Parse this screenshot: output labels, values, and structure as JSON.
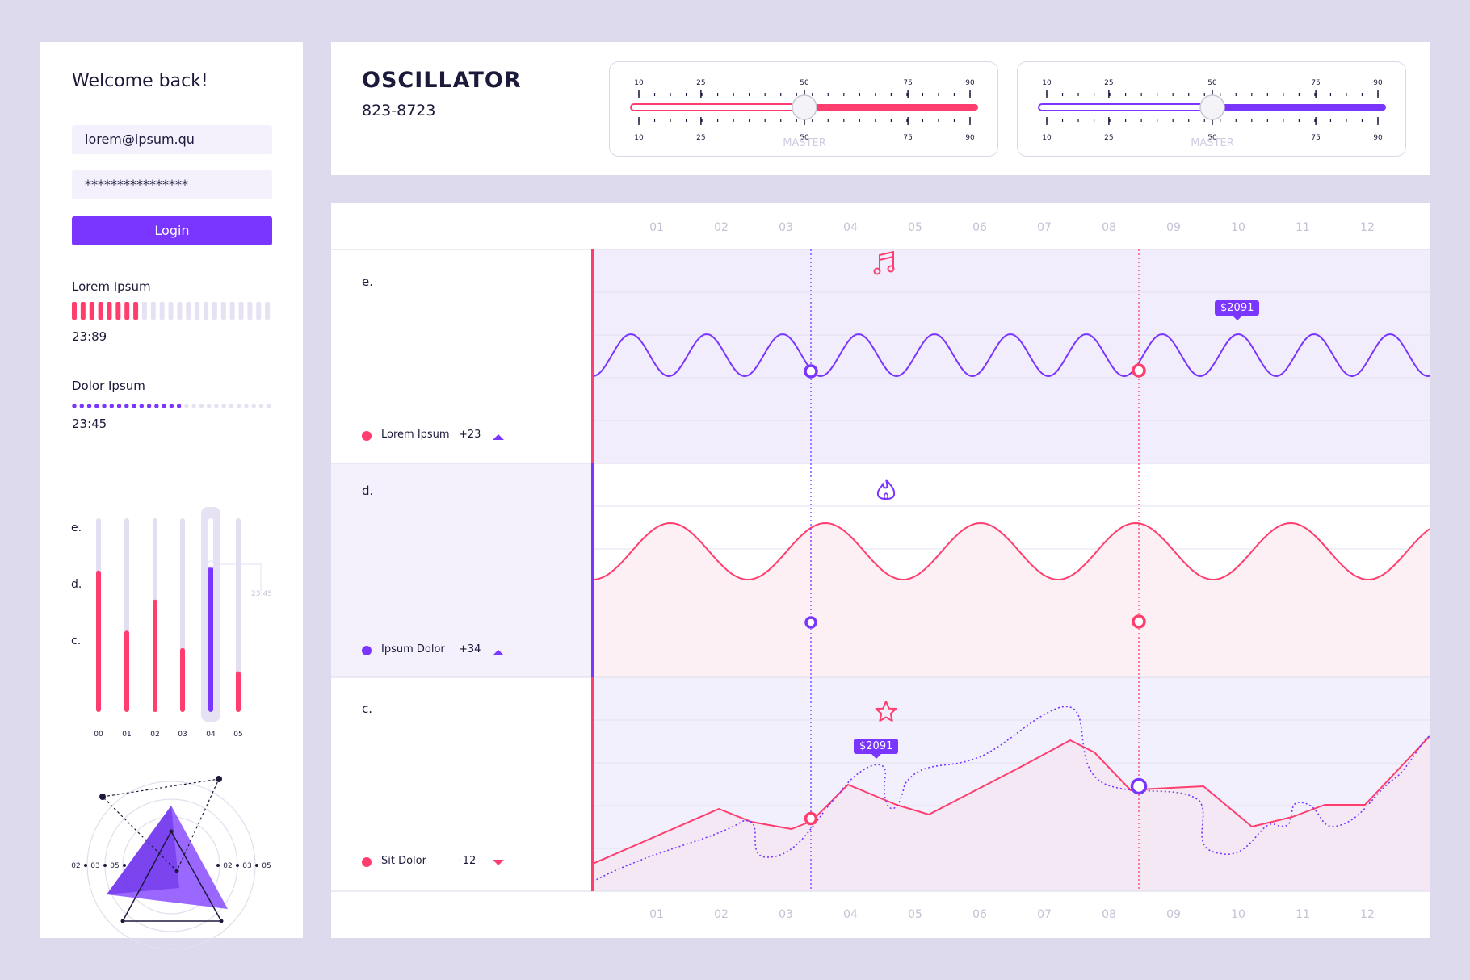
{
  "login": {
    "welcome": "Welcome back!",
    "email_value": "lorem@ipsum.qu",
    "password_value": "****************",
    "login_label": "Login"
  },
  "progress": [
    {
      "label": "Lorem Ipsum",
      "time": "23:89",
      "filled": 8,
      "total": 23
    },
    {
      "label": "Dolor Ipsum",
      "time": "23:45",
      "filled": 15,
      "total": 27
    }
  ],
  "bars": {
    "row_labels": [
      "e.",
      "d.",
      "c."
    ],
    "x_labels": [
      "00",
      "01",
      "02",
      "03",
      "04",
      "05"
    ],
    "values": [
      0.73,
      0.42,
      0.58,
      0.33,
      0.75,
      0.21
    ],
    "selected_index": 4,
    "tooltip": "23:45"
  },
  "radar": {
    "left_ticks": [
      "02",
      "03",
      "05"
    ],
    "right_ticks": [
      "02",
      "03",
      "05"
    ]
  },
  "header": {
    "title": "OSCILLATOR",
    "phone": "823-8723"
  },
  "sliders": [
    {
      "ticks": [
        "10",
        "25",
        "50",
        "75",
        "90"
      ],
      "value": 50,
      "label": "MASTER",
      "color": "#ff3d6e"
    },
    {
      "ticks": [
        "10",
        "25",
        "50",
        "75",
        "90"
      ],
      "value": 50,
      "label": "MASTER",
      "color": "#7a35ff"
    }
  ],
  "columns": [
    "01",
    "02",
    "03",
    "04",
    "05",
    "06",
    "07",
    "08",
    "09",
    "10",
    "11",
    "12"
  ],
  "rows": [
    {
      "label": "e.",
      "icon": "music-note-icon",
      "legend_name": "Lorem Ipsum",
      "legend_value": "+23",
      "legend_dot_color": "#ff3d6e",
      "trend": "up"
    },
    {
      "label": "d.",
      "icon": "flame-icon",
      "legend_name": "Ipsum Dolor",
      "legend_value": "+34",
      "legend_dot_color": "#7a35ff",
      "trend": "up"
    },
    {
      "label": "c.",
      "icon": "star-icon",
      "legend_name": "Sit Dolor",
      "legend_value": "-12",
      "legend_dot_color": "#ff3d6e",
      "trend": "down"
    }
  ],
  "tooltips": {
    "wave_e": "$2091",
    "wave_c": "$2091"
  },
  "colors": {
    "accent": "#7a35ff",
    "pink": "#ff3d6e"
  }
}
